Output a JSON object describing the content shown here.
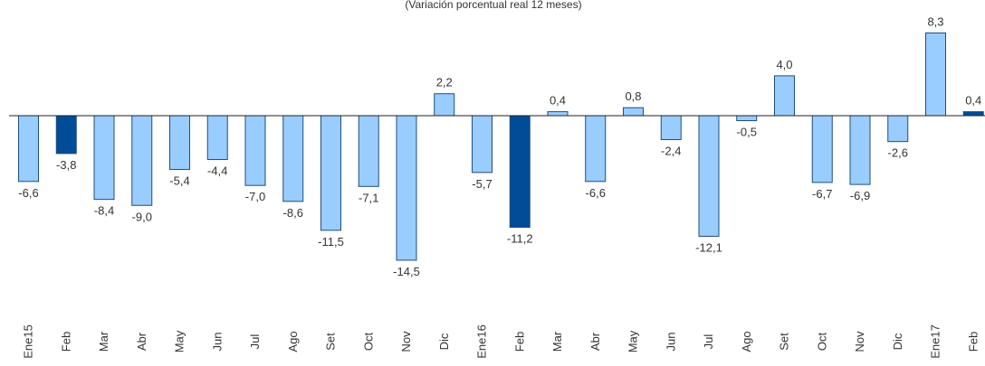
{
  "chart_data": {
    "type": "bar",
    "subtitle": "(Variación porcentual real 12 meses)",
    "categories": [
      "Ene15",
      "Feb",
      "Mar",
      "Abr",
      "May",
      "Jun",
      "Jul",
      "Ago",
      "Set",
      "Oct",
      "Nov",
      "Dic",
      "Ene16",
      "Feb",
      "Mar",
      "Abr",
      "May",
      "Jun",
      "Jul",
      "Ago",
      "Set",
      "Oct",
      "Nov",
      "Dic",
      "Ene17",
      "Feb"
    ],
    "values": [
      -6.6,
      -3.8,
      -8.4,
      -9.0,
      -5.4,
      -4.4,
      -7.0,
      -8.6,
      -11.5,
      -7.1,
      -14.5,
      2.2,
      -5.7,
      -11.2,
      0.4,
      -6.6,
      0.8,
      -2.4,
      -12.1,
      -0.5,
      4.0,
      -6.7,
      -6.9,
      -2.6,
      8.3,
      0.4
    ],
    "value_labels": [
      "-6,6",
      "-3,8",
      "-8,4",
      "-9,0",
      "-5,4",
      "-4,4",
      "-7,0",
      "-8,6",
      "-11,5",
      "-7,1",
      "-14,5",
      "2,2",
      "-5,7",
      "-11,2",
      "0,4",
      "-6,6",
      "0,8",
      "-2,4",
      "-12,1",
      "-0,5",
      "4,0",
      "-6,7",
      "-6,9",
      "-2,6",
      "8,3",
      "0,4"
    ],
    "colors": [
      "#99ccff",
      "#004c97",
      "#99ccff",
      "#99ccff",
      "#99ccff",
      "#99ccff",
      "#99ccff",
      "#99ccff",
      "#99ccff",
      "#99ccff",
      "#99ccff",
      "#99ccff",
      "#99ccff",
      "#004c97",
      "#99ccff",
      "#99ccff",
      "#99ccff",
      "#99ccff",
      "#99ccff",
      "#99ccff",
      "#99ccff",
      "#99ccff",
      "#99ccff",
      "#99ccff",
      "#99ccff",
      "#004c97"
    ],
    "ylim": [
      -20,
      10
    ]
  }
}
